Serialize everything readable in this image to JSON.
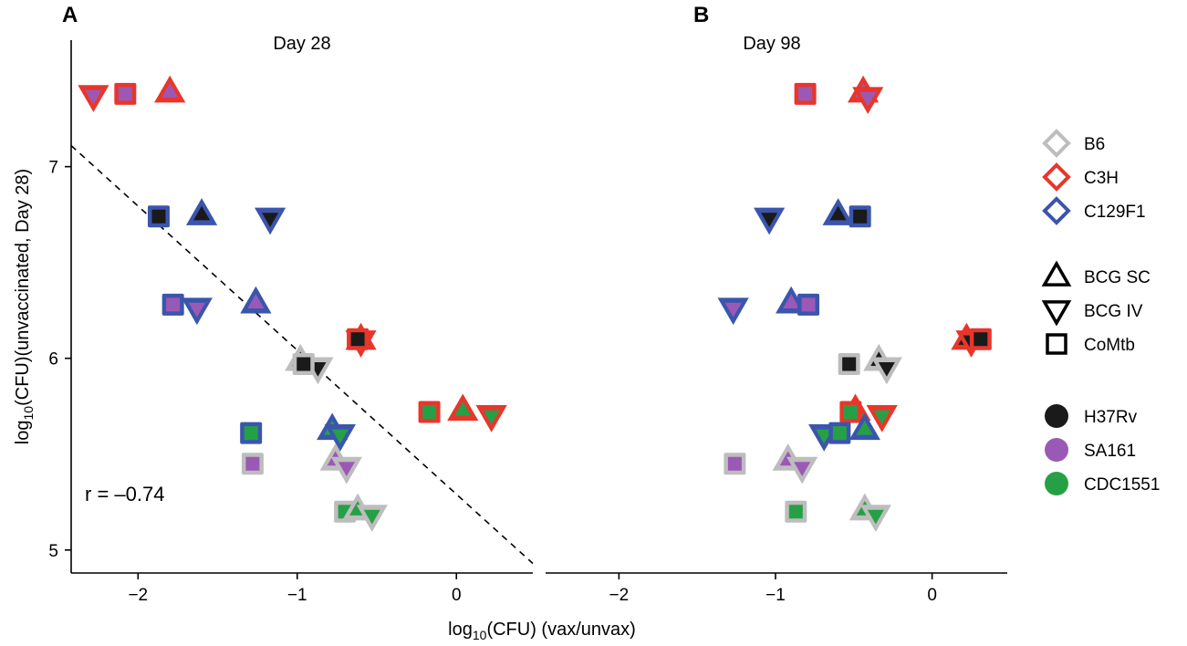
{
  "chart_data": {
    "type": "scatter",
    "panels": [
      {
        "letter": "A",
        "title": "Day 28",
        "xlim": [
          -2.42,
          0.48
        ],
        "xticks": [
          -2,
          -1,
          0
        ],
        "correlation": "r = –0.74",
        "fit_line": {
          "from": [
            -2.42,
            7.11
          ],
          "to": [
            0.48,
            4.93
          ]
        },
        "points": [
          {
            "x": -2.28,
            "y": 7.37,
            "strain": "C3H",
            "vaccine": "BCG IV",
            "tb": "SA161"
          },
          {
            "x": -2.08,
            "y": 7.38,
            "strain": "C3H",
            "vaccine": "CoMtb",
            "tb": "SA161"
          },
          {
            "x": -1.8,
            "y": 7.39,
            "strain": "C3H",
            "vaccine": "BCG SC",
            "tb": "SA161"
          },
          {
            "x": -1.87,
            "y": 6.74,
            "strain": "C129F1",
            "vaccine": "CoMtb",
            "tb": "H37Rv"
          },
          {
            "x": -1.6,
            "y": 6.75,
            "strain": "C129F1",
            "vaccine": "BCG SC",
            "tb": "H37Rv"
          },
          {
            "x": -1.17,
            "y": 6.73,
            "strain": "C129F1",
            "vaccine": "BCG IV",
            "tb": "H37Rv"
          },
          {
            "x": -1.78,
            "y": 6.28,
            "strain": "C129F1",
            "vaccine": "CoMtb",
            "tb": "SA161"
          },
          {
            "x": -1.63,
            "y": 6.26,
            "strain": "C129F1",
            "vaccine": "BCG IV",
            "tb": "SA161"
          },
          {
            "x": -1.26,
            "y": 6.29,
            "strain": "C129F1",
            "vaccine": "BCG SC",
            "tb": "SA161"
          },
          {
            "x": -0.6,
            "y": 6.1,
            "strain": "C3H",
            "vaccine": "BCG SC",
            "tb": "H37Rv"
          },
          {
            "x": -0.6,
            "y": 6.09,
            "strain": "C3H",
            "vaccine": "BCG IV",
            "tb": "H37Rv"
          },
          {
            "x": -0.62,
            "y": 6.1,
            "strain": "C3H",
            "vaccine": "CoMtb",
            "tb": "H37Rv"
          },
          {
            "x": -0.98,
            "y": 5.99,
            "strain": "B6",
            "vaccine": "BCG SC",
            "tb": "H37Rv"
          },
          {
            "x": -0.87,
            "y": 5.95,
            "strain": "B6",
            "vaccine": "BCG IV",
            "tb": "H37Rv"
          },
          {
            "x": -0.96,
            "y": 5.97,
            "strain": "B6",
            "vaccine": "CoMtb",
            "tb": "H37Rv"
          },
          {
            "x": -0.17,
            "y": 5.72,
            "strain": "C3H",
            "vaccine": "CoMtb",
            "tb": "CDC1551"
          },
          {
            "x": 0.04,
            "y": 5.73,
            "strain": "C3H",
            "vaccine": "BCG SC",
            "tb": "CDC1551"
          },
          {
            "x": 0.22,
            "y": 5.7,
            "strain": "C3H",
            "vaccine": "BCG IV",
            "tb": "CDC1551"
          },
          {
            "x": -1.29,
            "y": 5.61,
            "strain": "C129F1",
            "vaccine": "CoMtb",
            "tb": "CDC1551"
          },
          {
            "x": -0.78,
            "y": 5.63,
            "strain": "C129F1",
            "vaccine": "BCG SC",
            "tb": "CDC1551"
          },
          {
            "x": -0.73,
            "y": 5.6,
            "strain": "C129F1",
            "vaccine": "BCG IV",
            "tb": "CDC1551"
          },
          {
            "x": -1.28,
            "y": 5.45,
            "strain": "B6",
            "vaccine": "CoMtb",
            "tb": "SA161"
          },
          {
            "x": -0.76,
            "y": 5.47,
            "strain": "B6",
            "vaccine": "BCG SC",
            "tb": "SA161"
          },
          {
            "x": -0.69,
            "y": 5.43,
            "strain": "B6",
            "vaccine": "BCG IV",
            "tb": "SA161"
          },
          {
            "x": -0.7,
            "y": 5.2,
            "strain": "B6",
            "vaccine": "CoMtb",
            "tb": "CDC1551"
          },
          {
            "x": -0.62,
            "y": 5.21,
            "strain": "B6",
            "vaccine": "BCG SC",
            "tb": "CDC1551"
          },
          {
            "x": -0.53,
            "y": 5.18,
            "strain": "B6",
            "vaccine": "BCG IV",
            "tb": "CDC1551"
          }
        ]
      },
      {
        "letter": "B",
        "title": "Day 98",
        "xlim": [
          -2.48,
          0.48
        ],
        "xticks": [
          -2,
          -1,
          0
        ],
        "points": [
          {
            "x": -0.81,
            "y": 7.38,
            "strain": "C3H",
            "vaccine": "CoMtb",
            "tb": "SA161"
          },
          {
            "x": -0.44,
            "y": 7.39,
            "strain": "C3H",
            "vaccine": "BCG SC",
            "tb": "SA161"
          },
          {
            "x": -0.41,
            "y": 7.36,
            "strain": "C3H",
            "vaccine": "BCG IV",
            "tb": "SA161"
          },
          {
            "x": -1.04,
            "y": 6.73,
            "strain": "C129F1",
            "vaccine": "BCG IV",
            "tb": "H37Rv"
          },
          {
            "x": -0.6,
            "y": 6.75,
            "strain": "C129F1",
            "vaccine": "BCG SC",
            "tb": "H37Rv"
          },
          {
            "x": -0.46,
            "y": 6.74,
            "strain": "C129F1",
            "vaccine": "CoMtb",
            "tb": "H37Rv"
          },
          {
            "x": -1.27,
            "y": 6.26,
            "strain": "C129F1",
            "vaccine": "BCG IV",
            "tb": "SA161"
          },
          {
            "x": -0.9,
            "y": 6.29,
            "strain": "C129F1",
            "vaccine": "BCG SC",
            "tb": "SA161"
          },
          {
            "x": -0.79,
            "y": 6.28,
            "strain": "C129F1",
            "vaccine": "CoMtb",
            "tb": "SA161"
          },
          {
            "x": 0.22,
            "y": 6.1,
            "strain": "C3H",
            "vaccine": "BCG SC",
            "tb": "H37Rv"
          },
          {
            "x": 0.25,
            "y": 6.09,
            "strain": "C3H",
            "vaccine": "BCG IV",
            "tb": "H37Rv"
          },
          {
            "x": 0.31,
            "y": 6.1,
            "strain": "C3H",
            "vaccine": "CoMtb",
            "tb": "H37Rv"
          },
          {
            "x": -0.53,
            "y": 5.97,
            "strain": "B6",
            "vaccine": "CoMtb",
            "tb": "H37Rv"
          },
          {
            "x": -0.34,
            "y": 5.99,
            "strain": "B6",
            "vaccine": "BCG SC",
            "tb": "H37Rv"
          },
          {
            "x": -0.29,
            "y": 5.95,
            "strain": "B6",
            "vaccine": "BCG IV",
            "tb": "H37Rv"
          },
          {
            "x": -0.49,
            "y": 5.73,
            "strain": "C3H",
            "vaccine": "BCG SC",
            "tb": "CDC1551"
          },
          {
            "x": -0.52,
            "y": 5.72,
            "strain": "C3H",
            "vaccine": "CoMtb",
            "tb": "CDC1551"
          },
          {
            "x": -0.32,
            "y": 5.7,
            "strain": "C3H",
            "vaccine": "BCG IV",
            "tb": "CDC1551"
          },
          {
            "x": -0.69,
            "y": 5.6,
            "strain": "C129F1",
            "vaccine": "BCG IV",
            "tb": "CDC1551"
          },
          {
            "x": -0.59,
            "y": 5.61,
            "strain": "C129F1",
            "vaccine": "CoMtb",
            "tb": "CDC1551"
          },
          {
            "x": -0.43,
            "y": 5.63,
            "strain": "C129F1",
            "vaccine": "BCG SC",
            "tb": "CDC1551"
          },
          {
            "x": -1.26,
            "y": 5.45,
            "strain": "B6",
            "vaccine": "CoMtb",
            "tb": "SA161"
          },
          {
            "x": -0.92,
            "y": 5.47,
            "strain": "B6",
            "vaccine": "BCG SC",
            "tb": "SA161"
          },
          {
            "x": -0.83,
            "y": 5.43,
            "strain": "B6",
            "vaccine": "BCG IV",
            "tb": "SA161"
          },
          {
            "x": -0.87,
            "y": 5.2,
            "strain": "B6",
            "vaccine": "CoMtb",
            "tb": "CDC1551"
          },
          {
            "x": -0.43,
            "y": 5.21,
            "strain": "B6",
            "vaccine": "BCG SC",
            "tb": "CDC1551"
          },
          {
            "x": -0.36,
            "y": 5.18,
            "strain": "B6",
            "vaccine": "BCG IV",
            "tb": "CDC1551"
          }
        ]
      }
    ],
    "ylim": [
      4.88,
      7.66
    ],
    "yticks": [
      5,
      6,
      7
    ],
    "xlabel": {
      "prefix": "log",
      "sub": "10",
      "suffix": "(CFU) (vax/unvax)"
    },
    "ylabel": {
      "prefix": "log",
      "sub": "10",
      "suffix": "(CFU)(unvaccinated, Day 28)"
    },
    "legend": {
      "strains": [
        {
          "label": "B6",
          "color": "#bdbdbd"
        },
        {
          "label": "C3H",
          "color": "#e8362b"
        },
        {
          "label": "C129F1",
          "color": "#3b55ad"
        }
      ],
      "vaccines": [
        {
          "label": "BCG SC",
          "shape": "triangle-up"
        },
        {
          "label": "BCG IV",
          "shape": "triangle-down"
        },
        {
          "label": "CoMtb",
          "shape": "square"
        }
      ],
      "tb_strains": [
        {
          "label": "H37Rv",
          "color": "#1a1a1a"
        },
        {
          "label": "SA161",
          "color": "#9b59b6"
        },
        {
          "label": "CDC1551",
          "color": "#26a046"
        }
      ]
    }
  }
}
